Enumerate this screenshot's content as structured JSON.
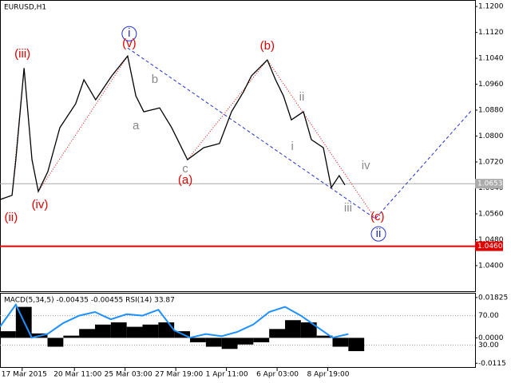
{
  "chart_data": [
    {
      "type": "line",
      "title": "EURUSD,H1",
      "color": "#000000",
      "xlim": [
        0,
        150
      ],
      "ylim": [
        1.0321,
        1.122
      ],
      "xticks": [
        {
          "value": 7,
          "label": "17 Mar 2015"
        },
        {
          "value": 23.5,
          "label": "20 Mar 11:00"
        },
        {
          "value": 39.5,
          "label": "25 Mar 03:00"
        },
        {
          "value": 55.5,
          "label": "27 Mar 19:00"
        },
        {
          "value": 71.5,
          "label": "1 Apr 11:00"
        },
        {
          "value": 87.5,
          "label": "6 Apr 03:00"
        },
        {
          "value": 103.5,
          "label": "8 Apr 19:00"
        }
      ],
      "yticks": [
        {
          "value": 1.12,
          "label": "1.1200"
        },
        {
          "value": 1.112,
          "label": "1.1120"
        },
        {
          "value": 1.104,
          "label": "1.1040"
        },
        {
          "value": 1.096,
          "label": "1.0960"
        },
        {
          "value": 1.088,
          "label": "1.0880"
        },
        {
          "value": 1.08,
          "label": "1.0800"
        },
        {
          "value": 1.072,
          "label": "1.0720"
        },
        {
          "value": 1.064,
          "label": "1.0640"
        },
        {
          "value": 1.056,
          "label": "1.0560"
        },
        {
          "value": 1.048,
          "label": "1.0480"
        },
        {
          "value": 1.04,
          "label": "1.0400"
        }
      ],
      "x": [
        0,
        3.8,
        5.0,
        7.6,
        10.1,
        12.1,
        15.1,
        18.9,
        23.9,
        26.5,
        30.2,
        35.3,
        40.3,
        42.9,
        45.4,
        50.4,
        54.2,
        59.2,
        64.3,
        69.3,
        73.1,
        76.9,
        79.4,
        84.4,
        87.0,
        89.5,
        92.0,
        95.8,
        98.3,
        102.1,
        104.6,
        107.1,
        108.9
      ],
      "values": [
        1.0604,
        1.0617,
        1.0727,
        1.101,
        1.0727,
        1.0629,
        1.069,
        1.0826,
        1.09,
        1.0974,
        1.0912,
        1.0986,
        1.1047,
        1.0924,
        1.0875,
        1.0887,
        1.0826,
        1.0727,
        1.0764,
        1.0777,
        1.0875,
        1.0937,
        1.0986,
        1.1035,
        1.0974,
        1.0924,
        1.085,
        1.0875,
        1.0789,
        1.0764,
        1.0641,
        1.0678,
        1.0649
      ],
      "price_lines": [
        {
          "value": 1.0653,
          "label": "1.0653",
          "color": "#aaaaaa"
        },
        {
          "value": 1.046,
          "label": "1.0460",
          "color": "#e00000"
        }
      ],
      "wave_lines": [
        {
          "color": "#2030d0",
          "style": "dashed",
          "x": [
            40.3,
            118.5,
            148.7
          ],
          "values": [
            1.1072,
            1.0545,
            1.0877
          ]
        },
        {
          "color": "#e00000",
          "style": "dotted",
          "x": [
            3.8,
            7.6
          ],
          "values": [
            1.0617,
            1.101
          ]
        },
        {
          "color": "#e00000",
          "style": "dotted",
          "x": [
            12.1,
            40.3
          ],
          "values": [
            1.0629,
            1.1047
          ]
        },
        {
          "color": "#e00000",
          "style": "dotted",
          "x": [
            59.2,
            84.4,
            118.5
          ],
          "values": [
            1.0727,
            1.1035,
            1.0545
          ]
        }
      ],
      "annotations": [
        {
          "text": "(iii)",
          "x": 7.1,
          "y": 1.1052,
          "color": "#e00000"
        },
        {
          "text": "(ii)",
          "x": 3.5,
          "y": 1.0548,
          "color": "#e00000"
        },
        {
          "text": "(iv)",
          "x": 12.6,
          "y": 1.0587,
          "color": "#e00000"
        },
        {
          "text": "i",
          "x": 40.8,
          "y": 1.1116,
          "color": "#2030d0",
          "circled": true
        },
        {
          "text": "(v)",
          "x": 40.8,
          "y": 1.1084,
          "color": "#e00000"
        },
        {
          "text": "a",
          "x": 42.9,
          "y": 1.0831,
          "color": "#888888"
        },
        {
          "text": "b",
          "x": 48.9,
          "y": 1.0974,
          "color": "#888888"
        },
        {
          "text": "c",
          "x": 58.5,
          "y": 1.0698,
          "color": "#888888"
        },
        {
          "text": "(a)",
          "x": 58.5,
          "y": 1.0663,
          "color": "#e00000"
        },
        {
          "text": "(b)",
          "x": 84.4,
          "y": 1.1077,
          "color": "#e00000"
        },
        {
          "text": "ii",
          "x": 95.3,
          "y": 1.0919,
          "color": "#888888"
        },
        {
          "text": "i",
          "x": 92.3,
          "y": 1.0767,
          "color": "#888888"
        },
        {
          "text": "iv",
          "x": 115.5,
          "y": 1.0708,
          "color": "#888888"
        },
        {
          "text": "iii",
          "x": 109.9,
          "y": 1.0577,
          "color": "#888888"
        },
        {
          "text": "(c)",
          "x": 119.2,
          "y": 1.055,
          "color": "#e00000"
        },
        {
          "text": "ii",
          "x": 119.5,
          "y": 1.0498,
          "color": "#2030d0",
          "circled": true
        }
      ]
    },
    {
      "type": "macd",
      "title": "MACD(5,34,5) -0.00435 -0.00455 RSI(14) 33.87",
      "xlim": [
        0,
        150
      ],
      "ylim": [
        -0.0132,
        0.02
      ],
      "y2lim": [
        0,
        100
      ],
      "yticks": [
        {
          "value": 0.01825,
          "label": "0.01825"
        },
        {
          "value": 0,
          "label": "0.0000"
        },
        {
          "value": -0.0115,
          "label": "-0.0115"
        }
      ],
      "y2ticks": [
        {
          "value": 70,
          "label": "70.00"
        },
        {
          "value": 30,
          "label": "30.00"
        }
      ],
      "x": [
        0,
        5,
        10,
        15,
        20,
        25,
        30,
        35,
        40,
        45,
        50,
        55,
        60,
        65,
        70,
        75,
        80,
        85,
        90,
        95,
        100,
        105,
        110
      ],
      "series": [
        {
          "color": "#000000",
          "values": [
            0.003,
            0.014,
            0.002,
            -0.004,
            0.001,
            0.004,
            0.006,
            0.007,
            0.005,
            0.006,
            0.007,
            0.003,
            -0.002,
            -0.004,
            -0.005,
            -0.003,
            -0.002,
            0.004,
            0.008,
            0.007,
            0.001,
            -0.004,
            -0.006
          ]
        },
        {
          "color": "#1e90ff",
          "axis": "y2",
          "values": [
            55,
            85,
            40,
            45,
            60,
            70,
            75,
            65,
            72,
            70,
            78,
            50,
            40,
            45,
            42,
            48,
            58,
            75,
            82,
            70,
            55,
            40,
            45
          ]
        }
      ]
    }
  ]
}
